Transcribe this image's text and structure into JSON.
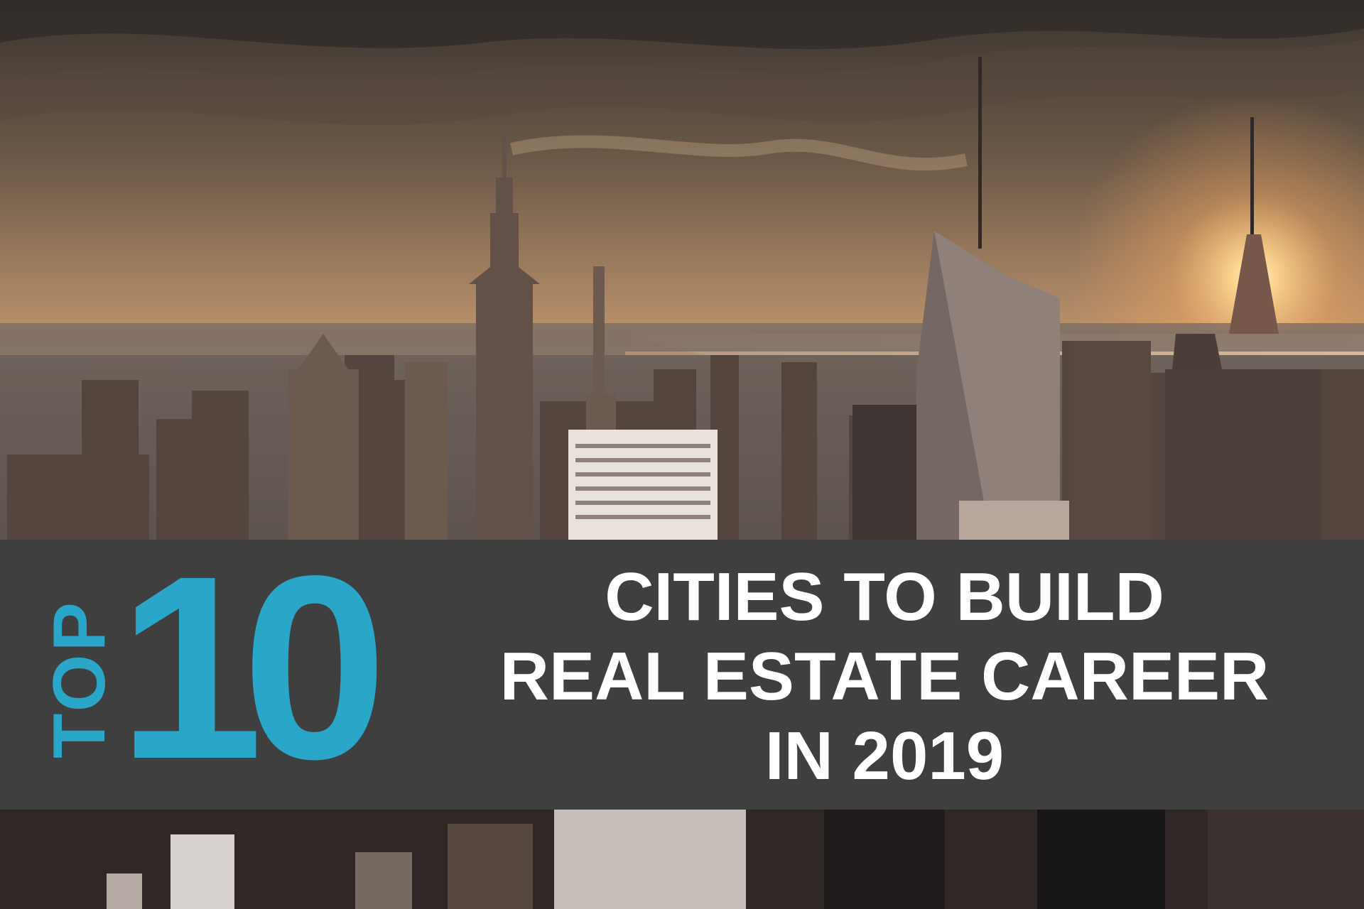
{
  "banner": {
    "top_word": "TOP",
    "top_number": "10",
    "headline_lines": [
      "CITIES TO BUILD",
      "REAL ESTATE CAREER",
      "IN 2019"
    ]
  },
  "colors": {
    "accent": "#2aa6c8",
    "banner_background": "#3f3f3f",
    "headline_text": "#ffffff"
  },
  "background": {
    "scene": "city-skyline-at-sunset-photo"
  }
}
